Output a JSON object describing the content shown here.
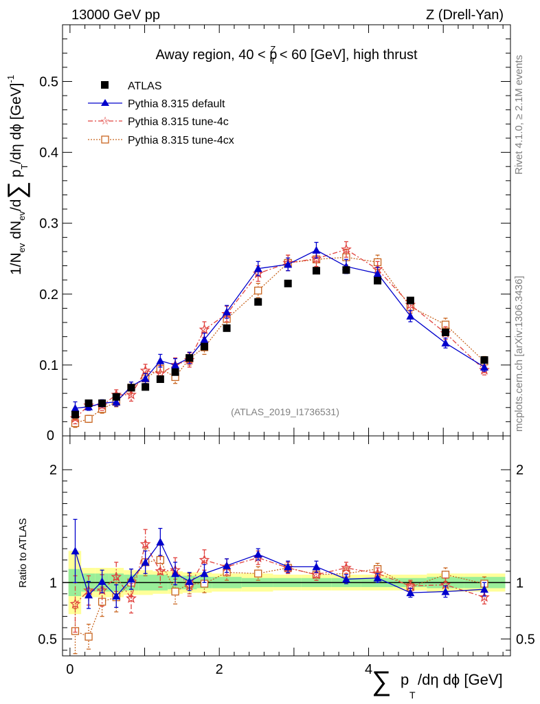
{
  "header": {
    "left": "13000 GeV pp",
    "right": "Z (Drell-Yan)"
  },
  "side_text": {
    "rivet": "Rivet 4.1.0, ≥ 2.1M events",
    "mcplots": "mcplots.cern.ch [arXiv:1306.3436]"
  },
  "watermark": "(ATLAS_2019_I1736531)",
  "colors": {
    "data": "#000000",
    "default": "#0000cc",
    "tune4c": "#e0403c",
    "tune4cx": "#c8641e",
    "band_inner": "#99ee99",
    "band_outer": "#ffff99"
  },
  "chart_data": [
    {
      "type": "scatter",
      "panel": "main",
      "title": "Away region, 40 < p_T^Z < 60 [GeV], high thrust",
      "title_parts": {
        "a": "Away region, 40 < p",
        "sub": "T",
        "sup": "Z",
        "b": " < 60 [GeV], high thrust"
      },
      "ylabel": "1/N_ev dN_ev/d∑ p_T/dη dϕ [GeV]^-1",
      "xlim": [
        -0.1,
        5.9
      ],
      "ylim": [
        0,
        0.58
      ],
      "yticks": [
        0.1,
        0.2,
        0.3,
        0.4,
        0.5
      ],
      "yticklabels": [
        "0.1",
        "0.2",
        "0.3",
        "0.4",
        "0.5"
      ],
      "y0_label": "0",
      "x": [
        0.07,
        0.25,
        0.43,
        0.62,
        0.82,
        1.01,
        1.21,
        1.41,
        1.6,
        1.8,
        2.1,
        2.52,
        2.92,
        3.3,
        3.7,
        4.12,
        4.56,
        5.03,
        5.55
      ],
      "legend": [
        "ATLAS",
        "Pythia 8.315 default",
        "Pythia 8.315 tune-4c",
        "Pythia 8.315 tune-4cx"
      ],
      "series": [
        {
          "name": "ATLAS",
          "key": "data",
          "values": [
            0.03,
            0.046,
            0.046,
            0.055,
            0.068,
            0.069,
            0.08,
            0.09,
            0.11,
            0.126,
            0.152,
            0.189,
            0.215,
            0.233,
            0.234,
            0.219,
            0.191,
            0.146,
            0.107
          ],
          "errors": [
            0.003,
            0.003,
            0.003,
            0.003,
            0.003,
            0.003,
            0.003,
            0.003,
            0.003,
            0.003,
            0.003,
            0.003,
            0.003,
            0.003,
            0.003,
            0.003,
            0.003,
            0.003,
            0.003
          ]
        },
        {
          "name": "Pythia 8.315 default",
          "key": "default",
          "values": [
            0.039,
            0.041,
            0.046,
            0.048,
            0.07,
            0.081,
            0.106,
            0.1,
            0.11,
            0.136,
            0.175,
            0.236,
            0.242,
            0.262,
            0.239,
            0.229,
            0.169,
            0.131,
            0.097
          ],
          "errors": [
            0.009,
            0.005,
            0.005,
            0.006,
            0.006,
            0.007,
            0.009,
            0.009,
            0.008,
            0.009,
            0.009,
            0.01,
            0.009,
            0.011,
            0.01,
            0.009,
            0.008,
            0.007,
            0.006
          ]
        },
        {
          "name": "Pythia 8.315 tune-4c",
          "key": "tune4c",
          "values": [
            0.025,
            0.043,
            0.043,
            0.058,
            0.058,
            0.092,
            0.088,
            0.1,
            0.107,
            0.15,
            0.172,
            0.229,
            0.244,
            0.25,
            0.263,
            0.235,
            0.185,
            0.145,
            0.093
          ],
          "errors": [
            0.008,
            0.006,
            0.007,
            0.007,
            0.009,
            0.009,
            0.011,
            0.01,
            0.01,
            0.011,
            0.011,
            0.011,
            0.011,
            0.011,
            0.011,
            0.011,
            0.01,
            0.009,
            0.007
          ]
        },
        {
          "name": "Pythia 8.315 tune-4cx",
          "key": "tune4cx",
          "values": [
            0.018,
            0.024,
            0.038,
            0.048,
            0.068,
            0.081,
            0.095,
            0.083,
            0.109,
            0.125,
            0.165,
            0.205,
            0.244,
            0.249,
            0.252,
            0.245,
            0.182,
            0.157,
            0.105
          ],
          "errors": [
            0.006,
            0.005,
            0.006,
            0.007,
            0.008,
            0.008,
            0.01,
            0.009,
            0.009,
            0.01,
            0.01,
            0.01,
            0.011,
            0.011,
            0.011,
            0.01,
            0.009,
            0.009,
            0.007
          ]
        }
      ]
    },
    {
      "type": "scatter",
      "panel": "ratio",
      "ylabel": "Ratio to ATLAS",
      "xlabel": "∑ p_T/dη dϕ [GeV]",
      "xlim": [
        -0.1,
        5.9
      ],
      "ylim": [
        0.35,
        2.3
      ],
      "yticks": [
        0.5,
        1,
        2
      ],
      "yticklabels": [
        "0.5",
        "1",
        "2"
      ],
      "xticks": [
        0,
        2,
        4
      ],
      "xticklabels": [
        "0",
        "2",
        "4"
      ],
      "bin_edges": [
        -0.02,
        0.15,
        0.34,
        0.52,
        0.72,
        0.92,
        1.11,
        1.31,
        1.51,
        1.7,
        1.9,
        2.3,
        2.72,
        3.1,
        3.5,
        3.9,
        4.33,
        4.78,
        5.28,
        5.83
      ],
      "band_inner_halfwidth": [
        0.12,
        0.08,
        0.08,
        0.08,
        0.07,
        0.07,
        0.07,
        0.06,
        0.06,
        0.05,
        0.05,
        0.04,
        0.04,
        0.04,
        0.04,
        0.04,
        0.04,
        0.05,
        0.05
      ],
      "band_outer_halfwidth": [
        0.28,
        0.13,
        0.13,
        0.13,
        0.11,
        0.11,
        0.1,
        0.1,
        0.09,
        0.09,
        0.08,
        0.08,
        0.07,
        0.07,
        0.07,
        0.07,
        0.07,
        0.08,
        0.08
      ],
      "series": [
        {
          "name": "Pythia 8.315 default",
          "key": "default",
          "values": [
            1.28,
            0.89,
            1.01,
            0.88,
            1.03,
            1.18,
            1.36,
            1.08,
            1.01,
            1.08,
            1.15,
            1.25,
            1.14,
            1.14,
            1.03,
            1.04,
            0.91,
            0.92,
            0.94
          ],
          "errors": [
            0.28,
            0.12,
            0.1,
            0.1,
            0.09,
            0.1,
            0.12,
            0.1,
            0.08,
            0.08,
            0.06,
            0.05,
            0.05,
            0.05,
            0.04,
            0.04,
            0.04,
            0.05,
            0.06
          ]
        },
        {
          "name": "Pythia 8.315 tune-4c",
          "key": "tune4c",
          "values": [
            0.81,
            0.93,
            0.93,
            1.05,
            0.86,
            1.34,
            1.1,
            1.11,
            0.97,
            1.2,
            1.14,
            1.22,
            1.13,
            1.07,
            1.13,
            1.08,
            0.97,
            0.98,
            0.87
          ],
          "errors": [
            0.25,
            0.13,
            0.14,
            0.13,
            0.13,
            0.13,
            0.14,
            0.11,
            0.09,
            0.09,
            0.07,
            0.06,
            0.05,
            0.05,
            0.05,
            0.05,
            0.05,
            0.06,
            0.06
          ]
        },
        {
          "name": "Pythia 8.315 tune-4cx",
          "key": "tune4cx",
          "values": [
            0.57,
            0.52,
            0.83,
            0.87,
            1.0,
            1.18,
            1.2,
            0.92,
            0.99,
            0.99,
            1.09,
            1.08,
            1.13,
            1.07,
            1.08,
            1.12,
            0.96,
            1.07,
            0.99
          ],
          "errors": [
            0.2,
            0.11,
            0.13,
            0.13,
            0.12,
            0.12,
            0.13,
            0.11,
            0.09,
            0.08,
            0.07,
            0.06,
            0.05,
            0.05,
            0.05,
            0.05,
            0.05,
            0.06,
            0.06
          ]
        }
      ]
    }
  ]
}
